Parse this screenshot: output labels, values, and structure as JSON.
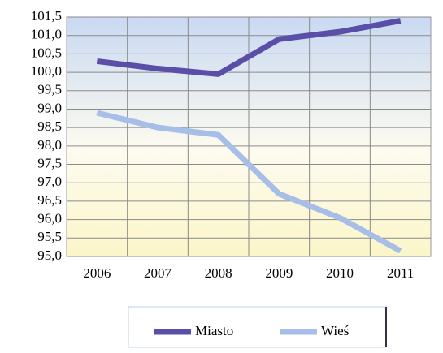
{
  "chart_data": {
    "type": "line",
    "categories": [
      "2006",
      "2007",
      "2008",
      "2009",
      "2010",
      "2011"
    ],
    "series": [
      {
        "name": "Miasto",
        "color": "#5a4fa8",
        "values": [
          100.3,
          100.1,
          99.95,
          100.9,
          101.1,
          101.4
        ]
      },
      {
        "name": "Wieś",
        "color": "#a6bee8",
        "values": [
          98.9,
          98.5,
          98.3,
          96.7,
          96.05,
          95.15
        ]
      }
    ],
    "ylim": [
      95.0,
      101.5
    ],
    "yticks": [
      {
        "value": 95.0,
        "label": "95,0"
      },
      {
        "value": 95.5,
        "label": "95,5"
      },
      {
        "value": 96.0,
        "label": "96,0"
      },
      {
        "value": 96.5,
        "label": "96,5"
      },
      {
        "value": 97.0,
        "label": "97,0"
      },
      {
        "value": 97.5,
        "label": "97,5"
      },
      {
        "value": 98.0,
        "label": "98,0"
      },
      {
        "value": 98.5,
        "label": "98,5"
      },
      {
        "value": 99.0,
        "label": "99,0"
      },
      {
        "value": 99.5,
        "label": "99,5"
      },
      {
        "value": 100.0,
        "label": "100,0"
      },
      {
        "value": 100.5,
        "label": "100,5"
      },
      {
        "value": 101.0,
        "label": "101,0"
      },
      {
        "value": 101.5,
        "label": "101,5"
      }
    ],
    "grid": true,
    "legend": "bottom"
  }
}
